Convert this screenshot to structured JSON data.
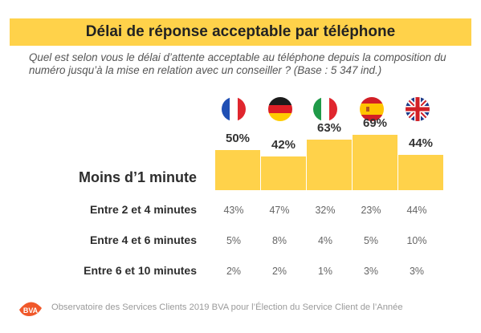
{
  "title": "Délai de réponse acceptable par téléphone",
  "subtitle": "Quel est selon vous le délai d’attente acceptable au téléphone depuis la composition du numéro jusqu’à la mise en relation avec un conseiller ? (Base : 5 347 ind.)",
  "countries": [
    {
      "icon": "flag-france-icon"
    },
    {
      "icon": "flag-germany-icon"
    },
    {
      "icon": "flag-italy-icon"
    },
    {
      "icon": "flag-spain-icon"
    },
    {
      "icon": "flag-uk-icon"
    }
  ],
  "colors": {
    "bar": "#ffd24a",
    "brand": "#f0582a"
  },
  "chart_data": {
    "type": "bar",
    "categories": [
      "France",
      "Germany",
      "Italy",
      "Spain",
      "United Kingdom"
    ],
    "series": [
      {
        "name": "Moins d’1 minute",
        "values": [
          50,
          42,
          63,
          69,
          44
        ],
        "labels": [
          "50%",
          "42%",
          "63%",
          "69%",
          "44%"
        ]
      }
    ],
    "ylim": [
      0,
      100
    ]
  },
  "table": {
    "rows": [
      {
        "label": "Entre 2 et 4 minutes",
        "values": [
          "43%",
          "47%",
          "32%",
          "23%",
          "44%"
        ]
      },
      {
        "label": "Entre 4 et 6 minutes",
        "values": [
          "5%",
          "8%",
          "4%",
          "5%",
          "10%"
        ]
      },
      {
        "label": "Entre 6 et 10 minutes",
        "values": [
          "2%",
          "2%",
          "1%",
          "3%",
          "3%"
        ]
      }
    ]
  },
  "footer": {
    "logo_text": "BVA",
    "text": "Observatoire des Services Clients 2019 BVA pour l’Élection du Service Client de l’Année"
  }
}
